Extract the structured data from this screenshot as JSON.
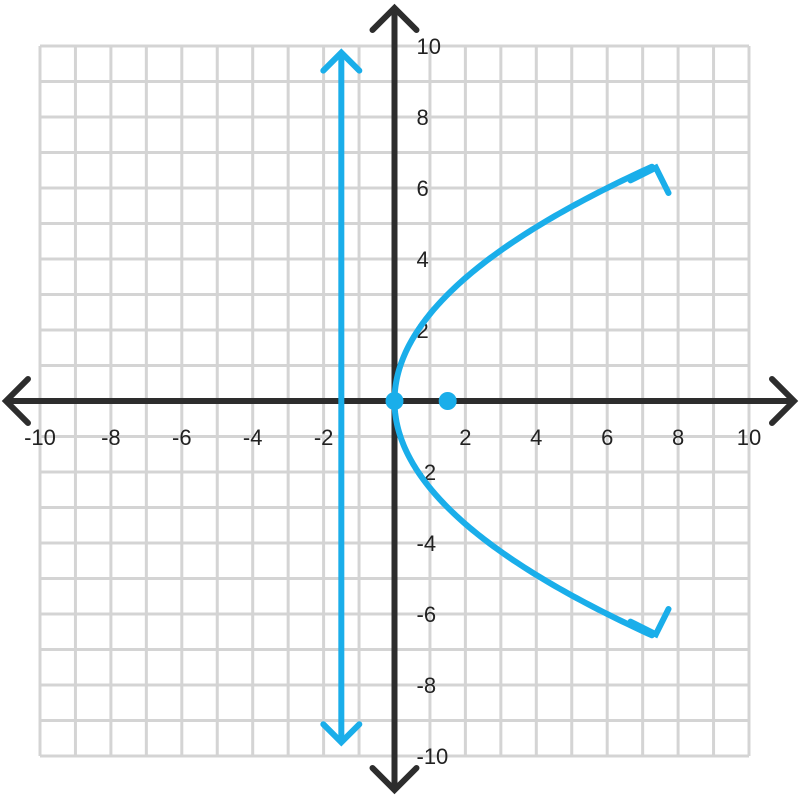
{
  "chart_data": {
    "type": "line",
    "xlim": [
      -10,
      10
    ],
    "ylim": [
      -10,
      10
    ],
    "grid": true,
    "grid_step": 1,
    "x_ticks": [
      "-10",
      "-8",
      "-6",
      "-4",
      "-2",
      "2",
      "4",
      "6",
      "8",
      "10"
    ],
    "y_ticks": [
      "10",
      "8",
      "6",
      "4",
      "2",
      "-2",
      "-4",
      "-6",
      "-8",
      "-10"
    ],
    "series": [
      {
        "kind": "parabola",
        "equation_form": "x = y^2 / 6",
        "y_range": [
          -6.6,
          6.6
        ],
        "arrows": "both-ends"
      },
      {
        "kind": "vertical-line",
        "x": -1.5,
        "y_range": [
          -9.5,
          9.7
        ],
        "arrows": "both-ends"
      }
    ],
    "points": [
      {
        "x": 0,
        "y": 0
      },
      {
        "x": 1.5,
        "y": 0
      }
    ]
  },
  "colors": {
    "curve": "#1AAEEA",
    "axis": "#2D2D2D",
    "grid": "#D4D4D4"
  }
}
